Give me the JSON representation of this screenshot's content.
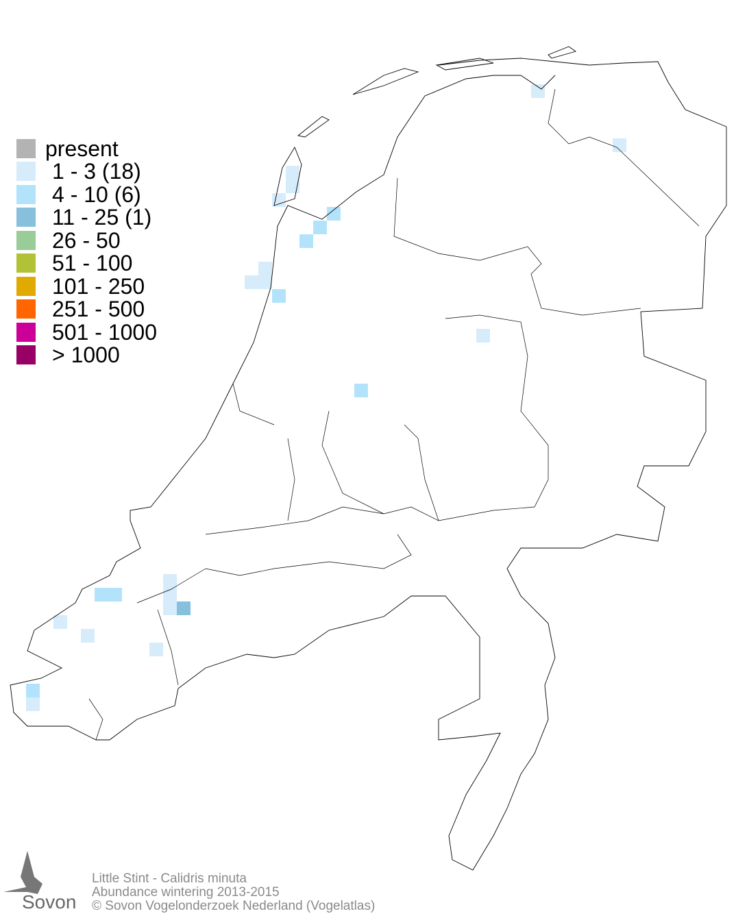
{
  "legend": {
    "items": [
      {
        "label": "present",
        "color": "#b3b3b3"
      },
      {
        "label": "1 - 3 (18)",
        "color": "#d6ecfa"
      },
      {
        "label": "4 - 10 (6)",
        "color": "#b3e3fb"
      },
      {
        "label": "11 - 25 (1)",
        "color": "#86c0dc"
      },
      {
        "label": "26 - 50",
        "color": "#99cc99"
      },
      {
        "label": "51 - 100",
        "color": "#b2c236"
      },
      {
        "label": "101 - 250",
        "color": "#e0aa00"
      },
      {
        "label": "251 - 500",
        "color": "#ff6600"
      },
      {
        "label": "501 - 1000",
        "color": "#cc0099"
      },
      {
        "label": "> 1000",
        "color": "#990066"
      }
    ]
  },
  "footer": {
    "species": "Little Stint - Calidris minuta",
    "subtitle": "Abundance wintering 2013-2015",
    "copyright": "© Sovon Vogelonderzoek Nederland (Vogelatlas)"
  },
  "logo": {
    "text": "Sovon"
  }
}
